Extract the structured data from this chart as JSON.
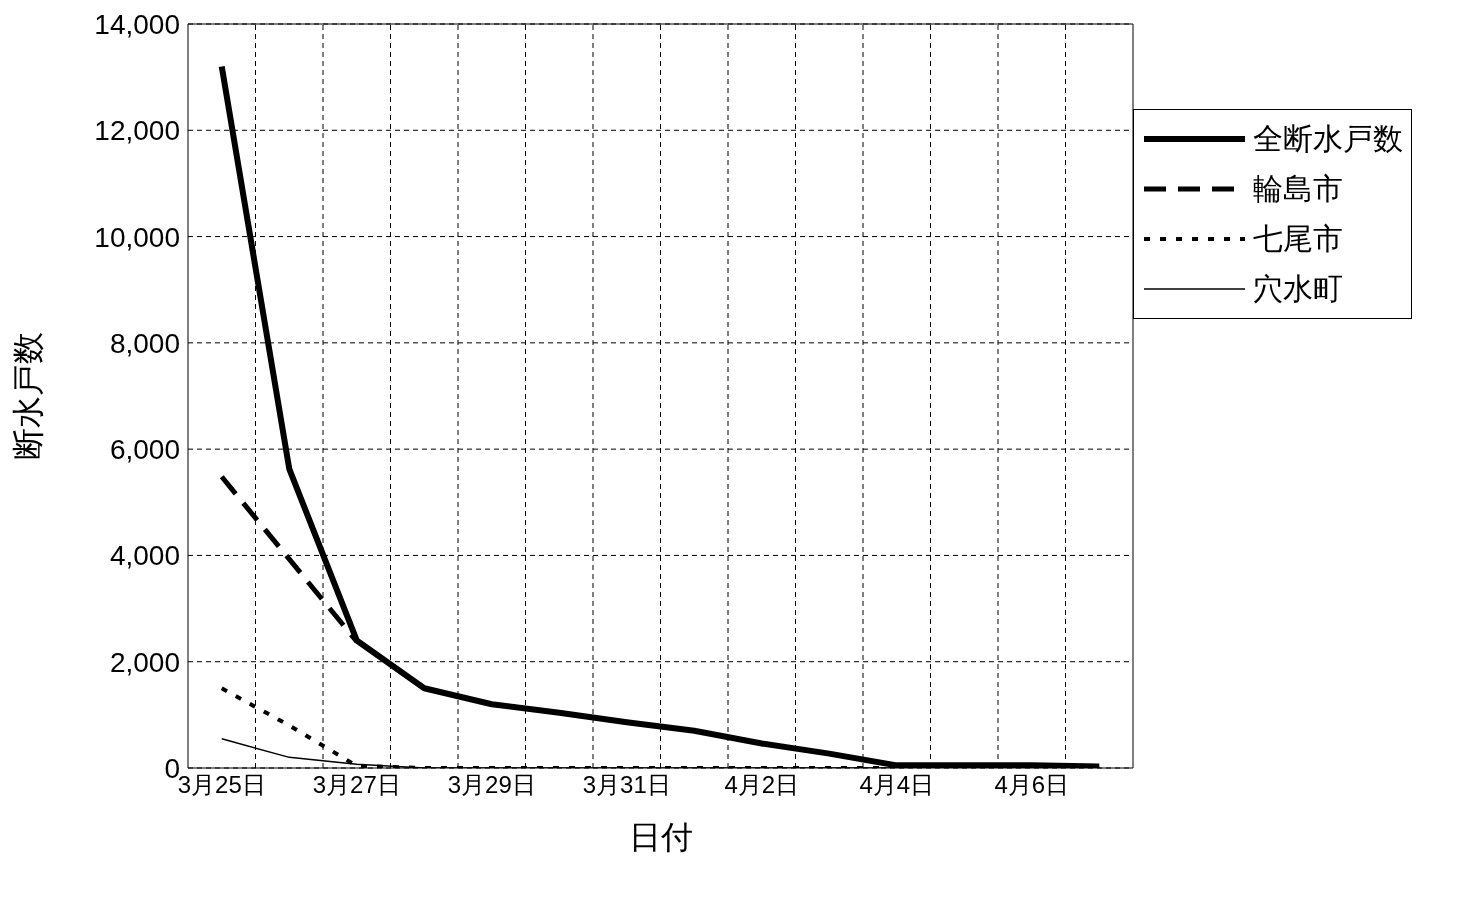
{
  "chart_data": {
    "type": "line",
    "xlabel": "日付",
    "ylabel": "断水戸数",
    "categories": [
      "3月25日",
      null,
      "3月27日",
      null,
      "3月29日",
      null,
      "3月31日",
      null,
      "4月2日",
      null,
      "4月4日",
      null,
      "4月6日",
      null
    ],
    "series": [
      {
        "name": "全断水戸数",
        "color": "#000000",
        "line_style": "solid",
        "values": [
          13200,
          5630,
          2400,
          1500,
          1200,
          1040,
          860,
          700,
          460,
          270,
          50,
          50,
          50,
          30
        ]
      },
      {
        "name": "輪島市",
        "color": "#000000",
        "line_style": "dashed",
        "values": [
          5480,
          3930,
          2380,
          null,
          null,
          null,
          null,
          null,
          null,
          null,
          null,
          null,
          null,
          null
        ]
      },
      {
        "name": "七尾市",
        "color": "#000000",
        "line_style": "dotted",
        "values": [
          1500,
          800,
          40,
          0,
          0,
          0,
          0,
          0,
          0,
          0,
          0,
          0,
          0,
          0
        ]
      },
      {
        "name": "穴水町",
        "color": "#000000",
        "line_style": "solid",
        "values": [
          550,
          200,
          70,
          0,
          0,
          0,
          0,
          0,
          0,
          0,
          0,
          0,
          0,
          0
        ]
      }
    ],
    "ylim": [
      0,
      14000
    ],
    "yticks": [
      0,
      {
        "value": 2000,
        "label": "2,000"
      },
      {
        "value": 4000,
        "label": "4,000"
      },
      {
        "value": 6000,
        "label": "6,000"
      },
      {
        "value": 8000,
        "label": "8,000"
      },
      {
        "value": 10000,
        "label": "10,000"
      },
      {
        "value": 12000,
        "label": "12,000"
      },
      {
        "value": 14000,
        "label": "14,000"
      }
    ],
    "grid": true,
    "legend": "top right",
    "marker": "none"
  }
}
